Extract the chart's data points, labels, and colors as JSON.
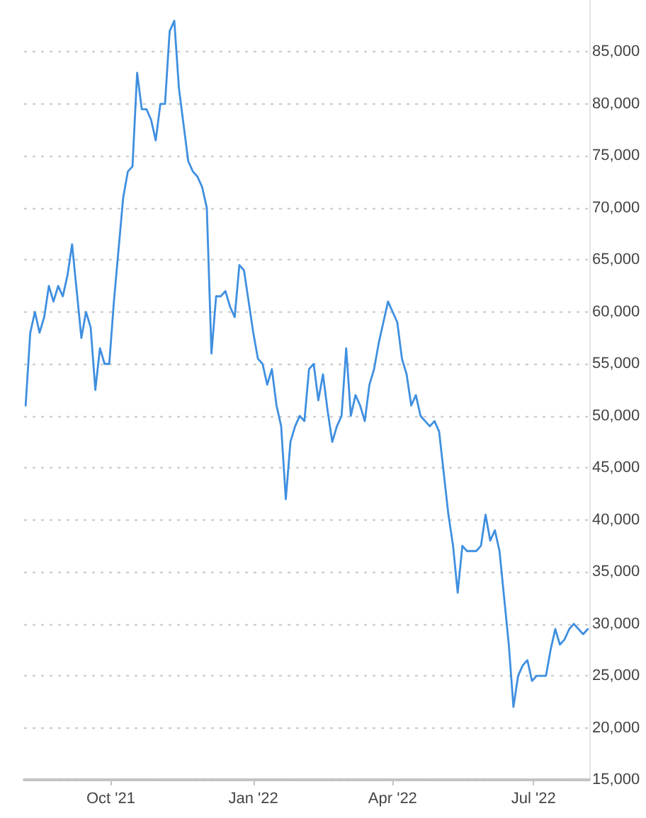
{
  "chart_data": {
    "type": "line",
    "line_style": "solid",
    "marker": "none",
    "grid": "y",
    "xlim": [
      "2021-08-06",
      "2022-08-06"
    ],
    "xticks": [
      {
        "value": "2021-10-01",
        "label": "Oct '21"
      },
      {
        "value": "2022-01-01",
        "label": "Jan '22"
      },
      {
        "value": "2022-04-01",
        "label": "Apr '22"
      },
      {
        "value": "2022-07-01",
        "label": "Jul '22"
      }
    ],
    "ylim": [
      15000,
      90000
    ],
    "yticks": [
      {
        "value": 15000,
        "label": "15,000"
      },
      {
        "value": 20000,
        "label": "20,000"
      },
      {
        "value": 25000,
        "label": "25,000"
      },
      {
        "value": 30000,
        "label": "30,000"
      },
      {
        "value": 35000,
        "label": "35,000"
      },
      {
        "value": 40000,
        "label": "40,000"
      },
      {
        "value": 45000,
        "label": "45,000"
      },
      {
        "value": 50000,
        "label": "50,000"
      },
      {
        "value": 55000,
        "label": "55,000"
      },
      {
        "value": 60000,
        "label": "60,000"
      },
      {
        "value": 65000,
        "label": "65,000"
      },
      {
        "value": 70000,
        "label": "70,000"
      },
      {
        "value": 75000,
        "label": "75,000"
      },
      {
        "value": 80000,
        "label": "80,000"
      },
      {
        "value": 85000,
        "label": "85,000"
      }
    ],
    "x": [
      "2021-08-07",
      "2021-08-10",
      "2021-08-13",
      "2021-08-16",
      "2021-08-19",
      "2021-08-22",
      "2021-08-25",
      "2021-08-28",
      "2021-08-31",
      "2021-09-03",
      "2021-09-06",
      "2021-09-09",
      "2021-09-12",
      "2021-09-15",
      "2021-09-18",
      "2021-09-21",
      "2021-09-24",
      "2021-09-27",
      "2021-09-30",
      "2021-10-03",
      "2021-10-06",
      "2021-10-09",
      "2021-10-12",
      "2021-10-15",
      "2021-10-18",
      "2021-10-21",
      "2021-10-24",
      "2021-10-27",
      "2021-10-30",
      "2021-11-02",
      "2021-11-05",
      "2021-11-08",
      "2021-11-11",
      "2021-11-14",
      "2021-11-17",
      "2021-11-20",
      "2021-11-23",
      "2021-11-26",
      "2021-11-29",
      "2021-12-02",
      "2021-12-05",
      "2021-12-08",
      "2021-12-11",
      "2021-12-14",
      "2021-12-17",
      "2021-12-20",
      "2021-12-23",
      "2021-12-26",
      "2021-12-29",
      "2022-01-01",
      "2022-01-04",
      "2022-01-07",
      "2022-01-10",
      "2022-01-13",
      "2022-01-16",
      "2022-01-19",
      "2022-01-22",
      "2022-01-25",
      "2022-01-28",
      "2022-01-31",
      "2022-02-03",
      "2022-02-06",
      "2022-02-09",
      "2022-02-12",
      "2022-02-15",
      "2022-02-18",
      "2022-02-21",
      "2022-02-24",
      "2022-02-27",
      "2022-03-02",
      "2022-03-05",
      "2022-03-08",
      "2022-03-11",
      "2022-03-14",
      "2022-03-17",
      "2022-03-20",
      "2022-03-23",
      "2022-03-26",
      "2022-03-29",
      "2022-04-01",
      "2022-04-04",
      "2022-04-07",
      "2022-04-10",
      "2022-04-13",
      "2022-04-16",
      "2022-04-19",
      "2022-04-22",
      "2022-04-25",
      "2022-04-28",
      "2022-05-01",
      "2022-05-04",
      "2022-05-07",
      "2022-05-10",
      "2022-05-13",
      "2022-05-16",
      "2022-05-19",
      "2022-05-22",
      "2022-05-25",
      "2022-05-28",
      "2022-05-31",
      "2022-06-03",
      "2022-06-06",
      "2022-06-09",
      "2022-06-12",
      "2022-06-15",
      "2022-06-18",
      "2022-06-21",
      "2022-06-24",
      "2022-06-27",
      "2022-06-30",
      "2022-07-03",
      "2022-07-06",
      "2022-07-09",
      "2022-07-12",
      "2022-07-15",
      "2022-07-18",
      "2022-07-21",
      "2022-07-24",
      "2022-07-27",
      "2022-07-30",
      "2022-08-02",
      "2022-08-05"
    ],
    "series": [
      {
        "color": "#3f8fe0",
        "values": [
          51000,
          58000,
          60000,
          58000,
          59500,
          62500,
          61000,
          62500,
          61500,
          63500,
          66500,
          62000,
          57500,
          60000,
          58500,
          52500,
          56500,
          55000,
          55000,
          61000,
          66000,
          71000,
          73500,
          74000,
          83000,
          79500,
          79500,
          78500,
          76500,
          80000,
          80000,
          87000,
          88000,
          81500,
          78000,
          74500,
          73500,
          73000,
          72000,
          70000,
          56000,
          61500,
          61500,
          62000,
          60500,
          59500,
          64500,
          64000,
          61000,
          58000,
          55500,
          55000,
          53000,
          54500,
          51000,
          49000,
          42000,
          47500,
          49000,
          50000,
          49500,
          54500,
          55000,
          51500,
          54000,
          50500,
          47500,
          49000,
          50000,
          56500,
          50000,
          52000,
          51000,
          49500,
          53000,
          54500,
          57000,
          59000,
          61000,
          60000,
          59000,
          55500,
          54000,
          51000,
          52000,
          50000,
          49500,
          49000,
          49500,
          48500,
          44500,
          40500,
          37500,
          33000,
          37500,
          37000,
          37000,
          37000,
          37500,
          40500,
          38000,
          39000,
          37000,
          32500,
          28000,
          22000,
          25000,
          26000,
          26500,
          24500,
          25000,
          25000,
          25000,
          27500,
          29500,
          28000,
          28500,
          29500,
          30000,
          29500,
          29000,
          29500
        ]
      }
    ]
  }
}
